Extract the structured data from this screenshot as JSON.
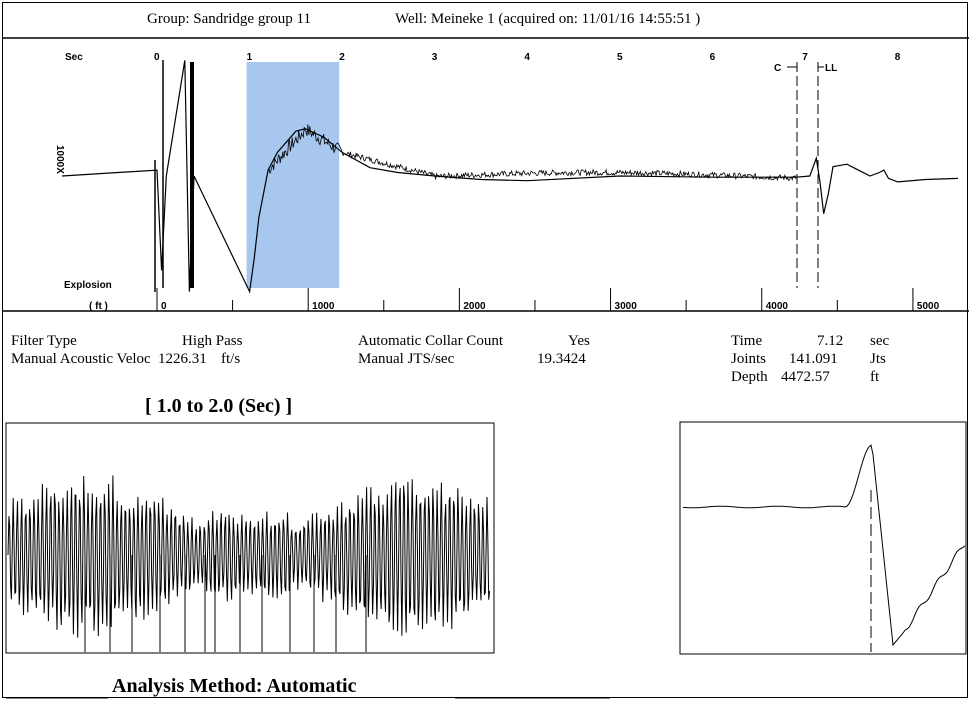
{
  "header": {
    "group_text": "Group: Sandridge group 11",
    "well_text": "Well: Meineke 1 (acquired on: 11/01/16 14:55:51 )"
  },
  "main_chart": {
    "time_label": "Sec",
    "depth_label": "( ft )",
    "gain_label": "1000X",
    "explosion_label": "Explosion",
    "collar_marker_label": "C",
    "liquid_level_label": "LL"
  },
  "info": {
    "filter_type_label": "Filter Type",
    "filter_type_value": "High Pass",
    "velocity_label": "Manual Acoustic Veloc",
    "velocity_value": "1226.31",
    "velocity_unit": "ft/s",
    "collar_count_label": "Automatic Collar Count",
    "collar_count_value": "Yes",
    "jts_label": "Manual JTS/sec",
    "jts_value": "19.3424",
    "time_label": "Time",
    "time_value": "7.12",
    "time_unit": "sec",
    "joints_label": "Joints",
    "joints_value": "141.091",
    "joints_unit": "Jts",
    "depth_label": "Depth",
    "depth_value": "4472.57",
    "depth_unit": "ft"
  },
  "zoom": {
    "title": "[ 1.0  to  2.0 (Sec) ]"
  },
  "footer": {
    "analysis_text": "Analysis Method:   Automatic"
  },
  "colors": {
    "highlight": "#a7c7ef",
    "trace": "#000000"
  },
  "chart_data": [
    {
      "type": "line",
      "name": "acoustic-trace",
      "x_axis_top": {
        "label": "Sec",
        "ticks": [
          0,
          1,
          2,
          3,
          4,
          5,
          6,
          7,
          8
        ],
        "range": [
          0,
          8.65
        ]
      },
      "x_axis_bottom": {
        "label": "( ft )",
        "ticks": [
          0,
          1000,
          2000,
          3000,
          4000,
          5000
        ]
      },
      "highlight_range_sec": [
        1.0,
        2.0
      ],
      "markers": [
        {
          "label": "Explosion",
          "x_sec": 0.0
        },
        {
          "label": "C",
          "x_sec": 6.87
        },
        {
          "label": "LL",
          "x_sec": 7.12
        }
      ],
      "trace_points_sec_rel": [
        [
          -1.6,
          0.0
        ],
        [
          -0.05,
          0.0
        ],
        [
          0.0,
          0.05
        ],
        [
          0.05,
          -0.8
        ],
        [
          0.1,
          0.0
        ],
        [
          0.3,
          0.98
        ],
        [
          0.35,
          -0.98
        ],
        [
          0.4,
          0.0
        ],
        [
          1.0,
          -0.98
        ],
        [
          1.05,
          -0.7
        ],
        [
          1.1,
          -0.35
        ],
        [
          1.2,
          0.05
        ],
        [
          1.3,
          0.2
        ],
        [
          1.5,
          0.38
        ],
        [
          1.6,
          0.4
        ],
        [
          1.8,
          0.33
        ],
        [
          2.0,
          0.2
        ],
        [
          2.3,
          0.07
        ],
        [
          2.6,
          0.03
        ],
        [
          3.0,
          0.0
        ],
        [
          3.5,
          -0.03
        ],
        [
          4.0,
          -0.04
        ],
        [
          5.0,
          0.0
        ],
        [
          6.0,
          -0.01
        ],
        [
          6.9,
          -0.01
        ],
        [
          7.05,
          0.0
        ],
        [
          7.12,
          0.15
        ],
        [
          7.16,
          -0.05
        ],
        [
          7.2,
          -0.32
        ],
        [
          7.25,
          -0.15
        ],
        [
          7.3,
          0.08
        ],
        [
          7.45,
          0.1
        ],
        [
          7.6,
          0.04
        ],
        [
          7.7,
          0.0
        ],
        [
          7.8,
          0.03
        ],
        [
          7.85,
          0.05
        ],
        [
          7.9,
          -0.02
        ],
        [
          8.0,
          -0.05
        ],
        [
          8.3,
          -0.03
        ],
        [
          8.65,
          -0.02
        ]
      ]
    },
    {
      "type": "line",
      "name": "zoom-1-to-2-sec",
      "x_range_sec": [
        1.0,
        2.0
      ],
      "description": "oscillating collar reflections, approx 19 per second"
    },
    {
      "type": "line",
      "name": "liquid-level-detail",
      "marker_label": "LL"
    }
  ]
}
